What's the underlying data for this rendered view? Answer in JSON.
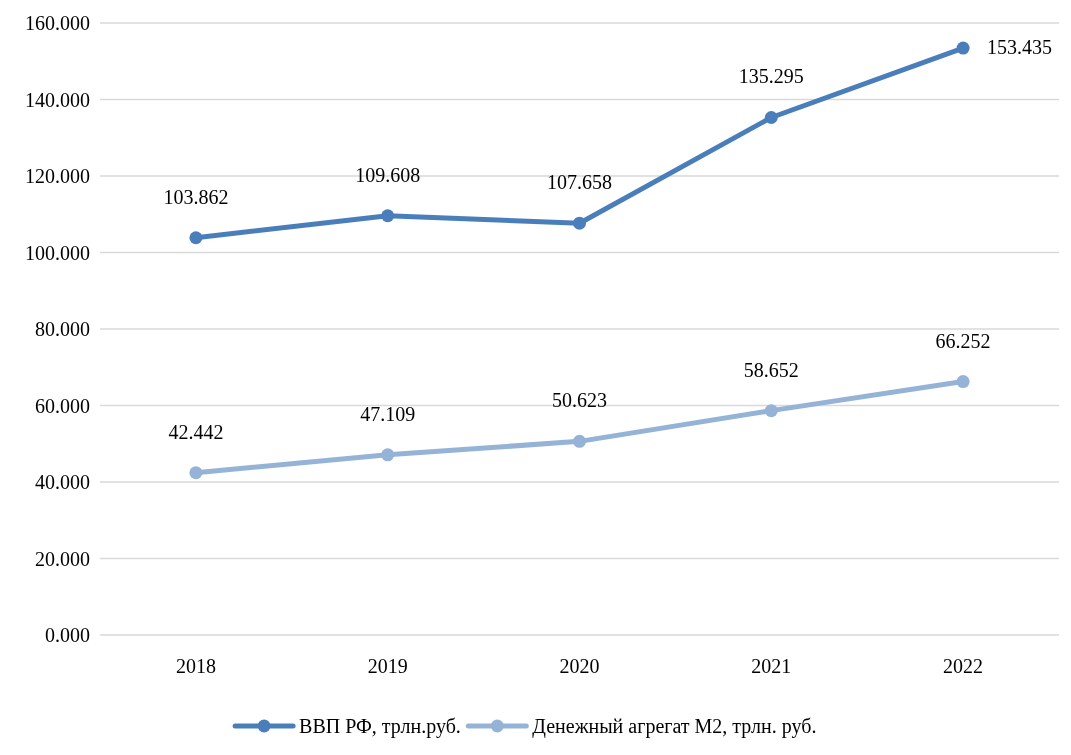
{
  "chart_data": {
    "type": "line",
    "categories": [
      "2018",
      "2019",
      "2020",
      "2021",
      "2022"
    ],
    "series": [
      {
        "name": "ВВП РФ, трлн.руб.",
        "color": "#4a7ebb",
        "values": [
          103.862,
          109.608,
          107.658,
          135.295,
          153.435
        ]
      },
      {
        "name": "Денежный агрегат М2, трлн. руб.",
        "color": "#95b3d7",
        "values": [
          42.442,
          47.109,
          50.623,
          58.652,
          66.252
        ]
      }
    ],
    "ylim": [
      0,
      160
    ],
    "yticks": [
      {
        "value": 0,
        "label": "0.000"
      },
      {
        "value": 20,
        "label": "20.000"
      },
      {
        "value": 40,
        "label": "40.000"
      },
      {
        "value": 60,
        "label": "60.000"
      },
      {
        "value": 80,
        "label": "80.000"
      },
      {
        "value": 100,
        "label": "100.000"
      },
      {
        "value": 120,
        "label": "120.000"
      },
      {
        "value": 140,
        "label": "140.000"
      },
      {
        "value": 160,
        "label": "160.000"
      }
    ],
    "grid": "y",
    "legend": "bottom",
    "marker": "circle",
    "line_style": "solid",
    "data_labels": true
  }
}
